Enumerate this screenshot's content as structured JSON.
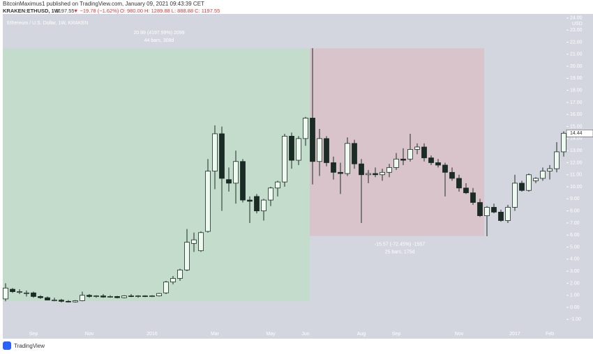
{
  "header": {
    "line1": "BitcoinMaximus1 published on TradingView.com, January 09, 2021 09:43:39 CET",
    "symbol": "KRAKEN:ETHUSD, 1W",
    "last": "1197.55",
    "change": "▼ −19.78 (−1.62%)",
    "ohlc": "O: 980.00 H: 1289.88 L: 888.88 C: 1197.55"
  },
  "footer": {
    "brand": "TradingView"
  },
  "chart_data": {
    "type": "candlestick",
    "title": "Ethereum / U.S. Dollar, 1W, KRAKEN",
    "currency": "USD",
    "up_color": "#eefaf0",
    "down_color": "#1b2b25",
    "categories": [
      null,
      null,
      null,
      null,
      "Sep",
      null,
      null,
      null,
      null,
      null,
      null,
      null,
      "Nov",
      null,
      null,
      null,
      null,
      null,
      null,
      null,
      null,
      "2016",
      null,
      null,
      null,
      null,
      null,
      null,
      null,
      null,
      "Mar",
      null,
      null,
      null,
      null,
      null,
      null,
      null,
      "May",
      null,
      null,
      null,
      null,
      "Jun",
      null,
      null,
      null,
      null,
      null,
      null,
      null,
      "Aug",
      null,
      null,
      null,
      null,
      "Sep",
      null,
      null,
      null,
      null,
      null,
      null,
      null,
      null,
      "Nov",
      null,
      null,
      null,
      null,
      null,
      null,
      null,
      "2017",
      null,
      null,
      null,
      null,
      "Feb",
      null,
      null
    ],
    "open": [
      0.7,
      1.5,
      1.3,
      1.2,
      1.2,
      0.9,
      0.8,
      0.6,
      0.6,
      0.5,
      0.45,
      0.55,
      1.0,
      0.9,
      0.95,
      0.85,
      0.9,
      0.8,
      0.95,
      0.9,
      0.95,
      0.9,
      0.95,
      1.2,
      2.1,
      2.4,
      3.1,
      5.3,
      4.7,
      6.3,
      11.3,
      14.4,
      10.6,
      10.3,
      12.1,
      8.9,
      9.2,
      8.0,
      8.9,
      9.9,
      10.4,
      14.2,
      12.2,
      14.0,
      15.7,
      12.1,
      14.0,
      12.0,
      11.2,
      11.1,
      13.6,
      11.9,
      11.0,
      11.1,
      11.0,
      11.2,
      11.6,
      12.3,
      12.3,
      13.1,
      13.3,
      12.4,
      12.0,
      11.8,
      11.2,
      10.7,
      9.9,
      9.5,
      8.7,
      7.6,
      8.3,
      7.9,
      7.2,
      8.3,
      10.3,
      9.7,
      10.5,
      10.7,
      11.3,
      11.5,
      12.9
    ],
    "high": [
      2.0,
      1.6,
      1.5,
      1.4,
      1.3,
      1.0,
      0.9,
      0.8,
      0.7,
      0.6,
      0.6,
      1.3,
      1.1,
      1.0,
      1.1,
      1.0,
      0.95,
      1.0,
      1.1,
      1.0,
      1.0,
      1.0,
      1.2,
      2.2,
      2.6,
      3.2,
      6.5,
      6.2,
      6.3,
      12.3,
      15.1,
      15.0,
      11.6,
      13.0,
      12.3,
      9.2,
      9.4,
      9.0,
      10.0,
      10.5,
      14.4,
      14.5,
      14.2,
      15.8,
      21.5,
      14.8,
      14.2,
      12.5,
      12.0,
      14.1,
      13.9,
      12.3,
      11.4,
      11.6,
      11.5,
      11.9,
      12.8,
      13.2,
      14.4,
      13.6,
      13.6,
      12.6,
      12.3,
      12.0,
      11.6,
      11.0,
      10.3,
      9.9,
      9.0,
      8.4,
      8.6,
      8.1,
      8.5,
      11.0,
      10.5,
      11.1,
      10.8,
      11.6,
      11.8,
      13.7,
      14.6
    ],
    "low": [
      0.5,
      1.2,
      1.1,
      0.9,
      0.8,
      0.7,
      0.6,
      0.5,
      0.4,
      0.4,
      0.4,
      0.5,
      0.8,
      0.8,
      0.8,
      0.8,
      0.75,
      0.75,
      0.85,
      0.8,
      0.85,
      0.85,
      0.9,
      1.1,
      1.9,
      2.2,
      3.0,
      4.6,
      4.6,
      6.2,
      9.8,
      8.0,
      9.6,
      8.6,
      8.7,
      7.0,
      7.8,
      7.2,
      8.4,
      9.2,
      10.0,
      11.5,
      11.8,
      13.4,
      10.2,
      10.9,
      11.7,
      10.6,
      9.4,
      10.9,
      11.5,
      7.0,
      10.3,
      10.8,
      10.5,
      10.8,
      11.4,
      11.8,
      12.1,
      12.7,
      12.1,
      11.8,
      11.6,
      9.2,
      10.5,
      9.6,
      9.4,
      8.5,
      7.5,
      5.9,
      7.8,
      7.1,
      7.0,
      8.0,
      9.6,
      9.6,
      10.3,
      10.5,
      10.6,
      11.2,
      12.5
    ],
    "close": [
      1.6,
      1.3,
      1.3,
      1.2,
      0.9,
      0.8,
      0.6,
      0.6,
      0.5,
      0.45,
      0.55,
      1.0,
      0.9,
      0.95,
      0.85,
      0.9,
      0.8,
      0.95,
      0.9,
      0.95,
      0.9,
      0.95,
      1.15,
      2.1,
      2.4,
      3.1,
      5.4,
      5.6,
      6.2,
      11.3,
      14.4,
      10.7,
      10.3,
      12.1,
      8.9,
      8.8,
      8.0,
      8.9,
      9.9,
      10.4,
      14.2,
      12.2,
      14.0,
      15.7,
      12.1,
      14.0,
      12.0,
      11.2,
      11.1,
      13.6,
      11.9,
      11.0,
      11.1,
      11.0,
      11.2,
      11.6,
      12.3,
      12.2,
      13.1,
      13.3,
      12.4,
      12.0,
      11.8,
      11.2,
      10.7,
      9.9,
      9.5,
      8.7,
      7.6,
      8.3,
      7.9,
      7.2,
      8.3,
      10.3,
      9.7,
      11.0,
      10.7,
      11.3,
      11.5,
      12.9,
      14.44
    ],
    "last_label": "14.44",
    "measures": [
      {
        "from": 0,
        "to": 44,
        "start": 0.5,
        "end": 21.49,
        "color": "#c3dccb",
        "text": [
          "20.99 (4197.99%) 2099",
          "44 bars, 308d"
        ]
      },
      {
        "from": 44,
        "to": 69,
        "start": 21.49,
        "end": 5.92,
        "color": "#d9c4cc",
        "text": [
          "-15.57 (-72.45%) -1557",
          "25 bars, 175d"
        ]
      }
    ],
    "ylim": [
      -1.79,
      24.34
    ],
    "yticks": [
      {
        "value": -1,
        "label": "-1.00"
      },
      {
        "value": 0,
        "label": "0.00"
      },
      {
        "value": 1,
        "label": "1.00"
      },
      {
        "value": 2,
        "label": "2.00"
      },
      {
        "value": 3,
        "label": "3.00"
      },
      {
        "value": 4,
        "label": "4.00"
      },
      {
        "value": 5,
        "label": "5.00"
      },
      {
        "value": 6,
        "label": "6.00"
      },
      {
        "value": 7,
        "label": "7.00"
      },
      {
        "value": 8,
        "label": "8.00"
      },
      {
        "value": 9,
        "label": "9.00"
      },
      {
        "value": 10,
        "label": "10.00"
      },
      {
        "value": 11,
        "label": "11.00"
      },
      {
        "value": 12,
        "label": "12.00"
      },
      {
        "value": 13,
        "label": "13.00"
      },
      {
        "value": 14,
        "label": "14.00"
      },
      {
        "value": 15,
        "label": "15.00"
      },
      {
        "value": 16,
        "label": "16.00"
      },
      {
        "value": 17,
        "label": "17.00"
      },
      {
        "value": 18,
        "label": "18.00"
      },
      {
        "value": 19,
        "label": "19.00"
      },
      {
        "value": 20,
        "label": "20.00"
      },
      {
        "value": 21,
        "label": "21.00"
      },
      {
        "value": 22,
        "label": "22.00"
      },
      {
        "value": 23,
        "label": "23.00"
      },
      {
        "value": 24,
        "label": "24.00"
      }
    ]
  }
}
